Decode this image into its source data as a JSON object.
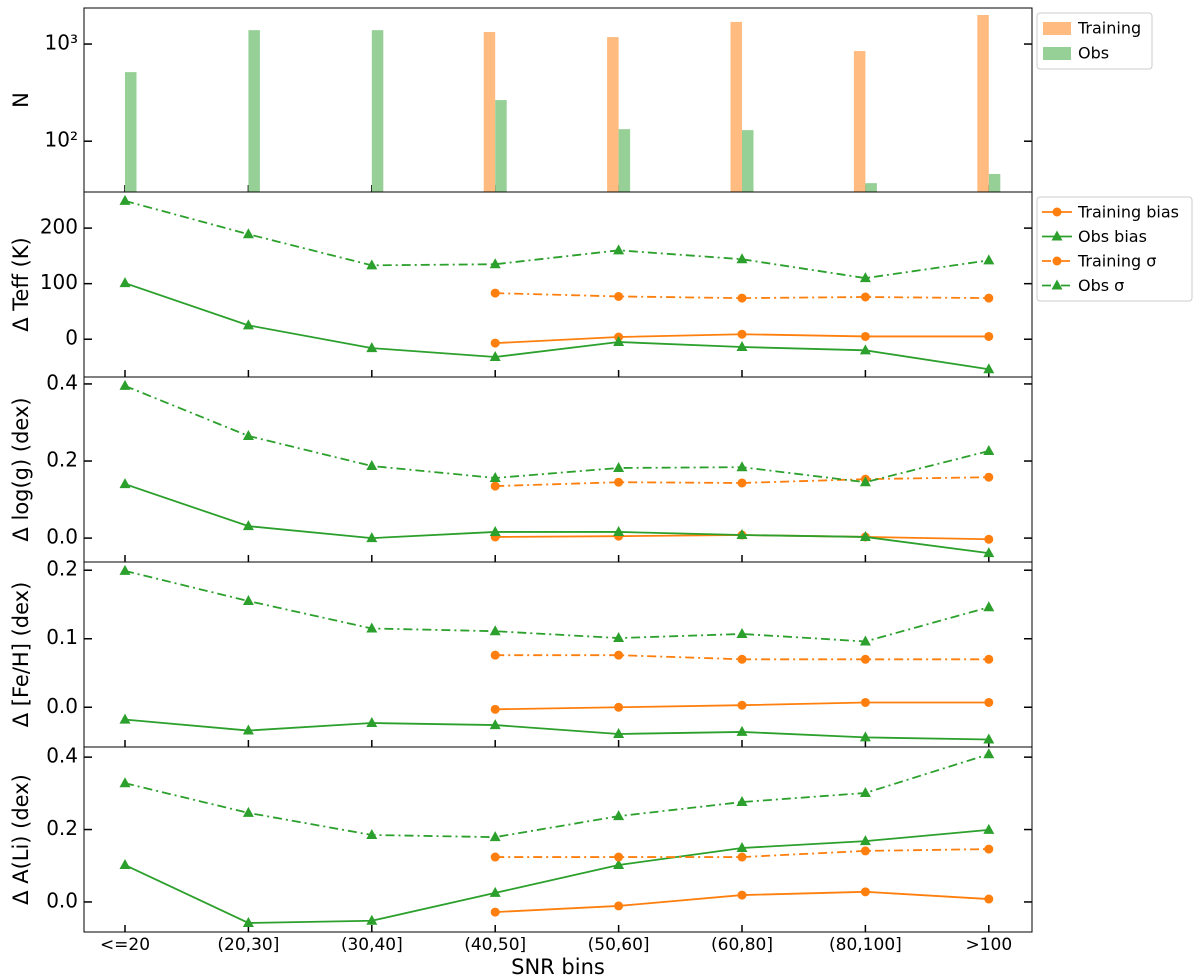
{
  "chart_data": [
    {
      "type": "bar",
      "ylabel": "N",
      "log": true,
      "ylim": [
        30,
        2350
      ],
      "yticks": [
        {
          "value": 100,
          "label": "10²"
        },
        {
          "value": 1000,
          "label": "10³"
        }
      ],
      "legend": "outside-upper-right",
      "series": [
        {
          "name": "Training",
          "color": "#ffbb80",
          "values": [
            null,
            null,
            null,
            1330,
            1180,
            1690,
            847,
            1990
          ]
        },
        {
          "name": "Obs",
          "color": "#96d096",
          "values": [
            514,
            1390,
            1390,
            265,
            133,
            130,
            37,
            46
          ]
        }
      ]
    },
    {
      "type": "line",
      "ylabel": "Δ Teff (K)",
      "ylim": [
        -68,
        265
      ],
      "yticks": [
        0,
        100,
        200
      ],
      "legend": "outside-upper-right",
      "series": [
        {
          "name": "Training bias",
          "color": "#ff7f0e",
          "line": "solid",
          "marker": "circle",
          "values": [
            null,
            null,
            null,
            -7,
            4,
            9,
            5,
            5
          ]
        },
        {
          "name": "Obs bias",
          "color": "#2ca02c",
          "line": "solid",
          "marker": "triangle",
          "values": [
            101,
            25,
            -16,
            -32,
            -5,
            -14,
            -20,
            -54
          ]
        },
        {
          "name": "Training σ",
          "color": "#ff7f0e",
          "line": "dashdot",
          "marker": "circle",
          "values": [
            null,
            null,
            null,
            83,
            77,
            74,
            76,
            74
          ]
        },
        {
          "name": "Obs σ",
          "color": "#2ca02c",
          "line": "dashdot",
          "marker": "triangle",
          "values": [
            249,
            189,
            133,
            135,
            160,
            144,
            110,
            142
          ]
        }
      ]
    },
    {
      "type": "line",
      "ylabel": "Δ log(g) (dex)",
      "ylim": [
        -0.062,
        0.418
      ],
      "yticks": [
        {
          "value": 0,
          "label": "0.0"
        },
        0.2,
        0.4
      ],
      "series": [
        {
          "color": "#ff7f0e",
          "line": "solid",
          "marker": "circle",
          "values": [
            null,
            null,
            null,
            0.003,
            0.005,
            0.008,
            0.003,
            -0.003
          ]
        },
        {
          "color": "#2ca02c",
          "line": "solid",
          "marker": "triangle",
          "values": [
            0.14,
            0.031,
            0,
            0.016,
            0.016,
            0.008,
            0.003,
            -0.039
          ]
        },
        {
          "color": "#ff7f0e",
          "line": "dashdot",
          "marker": "circle",
          "values": [
            null,
            null,
            null,
            0.135,
            0.145,
            0.143,
            0.153,
            0.158
          ]
        },
        {
          "color": "#2ca02c",
          "line": "dashdot",
          "marker": "triangle",
          "values": [
            0.395,
            0.265,
            0.187,
            0.156,
            0.182,
            0.184,
            0.145,
            0.226
          ]
        }
      ]
    },
    {
      "type": "line",
      "ylabel": "Δ [Fe/H] (dex)",
      "ylim": [
        -0.058,
        0.212
      ],
      "yticks": [
        {
          "value": 0,
          "label": "0.0"
        },
        0.1,
        0.2
      ],
      "series": [
        {
          "color": "#ff7f0e",
          "line": "solid",
          "marker": "circle",
          "values": [
            null,
            null,
            null,
            -0.003,
            0,
            0.003,
            0.007,
            0.007
          ]
        },
        {
          "color": "#2ca02c",
          "line": "solid",
          "marker": "triangle",
          "values": [
            -0.018,
            -0.034,
            -0.023,
            -0.026,
            -0.039,
            -0.036,
            -0.044,
            -0.047
          ]
        },
        {
          "color": "#ff7f0e",
          "line": "dashdot",
          "marker": "circle",
          "values": [
            null,
            null,
            null,
            0.076,
            0.076,
            0.07,
            0.07,
            0.07
          ]
        },
        {
          "color": "#2ca02c",
          "line": "dashdot",
          "marker": "triangle",
          "values": [
            0.199,
            0.155,
            0.115,
            0.111,
            0.101,
            0.107,
            0.096,
            0.146
          ]
        }
      ]
    },
    {
      "type": "line",
      "ylabel": "Δ A(Li) (dex)",
      "xlabel": "SNR bins",
      "ylim": [
        -0.083,
        0.428
      ],
      "yticks": [
        {
          "value": 0,
          "label": "0.0"
        },
        0.2,
        0.4
      ],
      "categories": [
        "<=20",
        "(20,30]",
        "(30,40]",
        "(40,50]",
        "(50,60]",
        "(60,80]",
        "(80,100]",
        ">100"
      ],
      "series": [
        {
          "color": "#ff7f0e",
          "line": "solid",
          "marker": "circle",
          "values": [
            null,
            null,
            null,
            -0.028,
            -0.011,
            0.019,
            0.028,
            0.008
          ]
        },
        {
          "color": "#2ca02c",
          "line": "solid",
          "marker": "triangle",
          "values": [
            0.102,
            -0.058,
            -0.052,
            0.025,
            0.102,
            0.149,
            0.168,
            0.199
          ]
        },
        {
          "color": "#ff7f0e",
          "line": "dashdot",
          "marker": "circle",
          "values": [
            null,
            null,
            null,
            0.124,
            0.124,
            0.124,
            0.141,
            0.146
          ]
        },
        {
          "color": "#2ca02c",
          "line": "dashdot",
          "marker": "triangle",
          "values": [
            0.328,
            0.246,
            0.185,
            0.179,
            0.237,
            0.276,
            0.301,
            0.408
          ]
        }
      ]
    }
  ]
}
